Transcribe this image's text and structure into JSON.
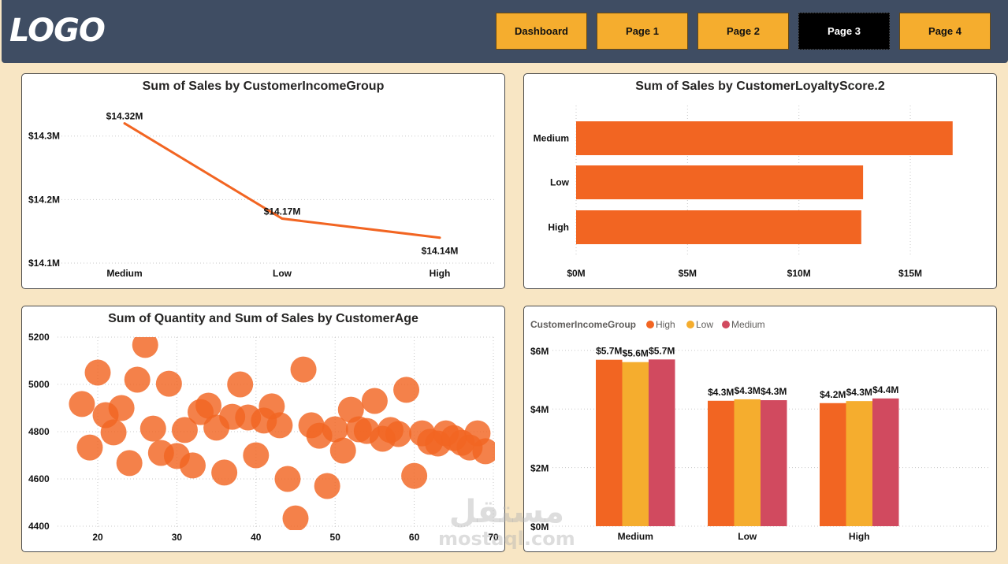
{
  "header": {
    "logo": "LOGO",
    "nav": [
      {
        "label": "Dashboard",
        "active": false
      },
      {
        "label": "Page 1",
        "active": false
      },
      {
        "label": "Page 2",
        "active": false
      },
      {
        "label": "Page 3",
        "active": true
      },
      {
        "label": "Page 4",
        "active": false
      }
    ],
    "colors": {
      "header_bg": "#3f4d63",
      "button": "#f5ad2e",
      "active_button": "#000000",
      "page_bg": "#f8e6c4"
    }
  },
  "watermark": {
    "arabic": "مستقل",
    "latin": "mostaql.com"
  },
  "chart_data": [
    {
      "id": "line",
      "type": "line",
      "title": "Sum of Sales by CustomerIncomeGroup",
      "categories": [
        "Medium",
        "Low",
        "High"
      ],
      "values": [
        14.32,
        14.17,
        14.14
      ],
      "data_labels": [
        "$14.32M",
        "$14.17M",
        "$14.14M"
      ],
      "yticks": [
        14.1,
        14.2,
        14.3
      ],
      "ytick_labels": [
        "$14.1M",
        "$14.2M",
        "$14.3M"
      ],
      "ylim": [
        14.1,
        14.34
      ],
      "unit": "$M",
      "color": "#f26522",
      "grid": true
    },
    {
      "id": "hbar",
      "type": "bar",
      "orientation": "horizontal",
      "title": "Sum of Sales by CustomerLoyaltyScore.2",
      "categories": [
        "Medium",
        "Low",
        "High"
      ],
      "values": [
        16.9,
        12.88,
        12.8
      ],
      "xticks": [
        0,
        5,
        10,
        15
      ],
      "xtick_labels": [
        "$0M",
        "$5M",
        "$10M",
        "$15M"
      ],
      "xlim": [
        0,
        18
      ],
      "unit": "$M",
      "color": "#f26522",
      "grid": true
    },
    {
      "id": "scatter",
      "type": "scatter",
      "title": "Sum of Quantity and Sum of Sales by CustomerAge",
      "xlabel": "CustomerAge",
      "ylabel": "Sum of Quantity",
      "xlim": [
        15.8,
        70
      ],
      "ylim": [
        4400,
        5200
      ],
      "xticks": [
        20,
        30,
        40,
        50,
        60,
        70
      ],
      "yticks": [
        4400,
        4600,
        4800,
        5000,
        5200
      ],
      "color": "#f26522",
      "grid": true,
      "points": [
        {
          "x": 18,
          "y": 4917
        },
        {
          "x": 19,
          "y": 4733
        },
        {
          "x": 20,
          "y": 5050
        },
        {
          "x": 21,
          "y": 4870
        },
        {
          "x": 22,
          "y": 4797
        },
        {
          "x": 23,
          "y": 4900
        },
        {
          "x": 24,
          "y": 4667
        },
        {
          "x": 25,
          "y": 5020
        },
        {
          "x": 26,
          "y": 5167
        },
        {
          "x": 27,
          "y": 4813
        },
        {
          "x": 28,
          "y": 4710
        },
        {
          "x": 29,
          "y": 5003
        },
        {
          "x": 30,
          "y": 4697
        },
        {
          "x": 31,
          "y": 4807
        },
        {
          "x": 32,
          "y": 4657
        },
        {
          "x": 33,
          "y": 4883
        },
        {
          "x": 34,
          "y": 4910
        },
        {
          "x": 35,
          "y": 4817
        },
        {
          "x": 36,
          "y": 4627
        },
        {
          "x": 37,
          "y": 4863
        },
        {
          "x": 38,
          "y": 5000
        },
        {
          "x": 39,
          "y": 4860
        },
        {
          "x": 40,
          "y": 4700
        },
        {
          "x": 41,
          "y": 4847
        },
        {
          "x": 42,
          "y": 4907
        },
        {
          "x": 43,
          "y": 4827
        },
        {
          "x": 44,
          "y": 4600
        },
        {
          "x": 45,
          "y": 4433
        },
        {
          "x": 46,
          "y": 5063
        },
        {
          "x": 47,
          "y": 4827
        },
        {
          "x": 48,
          "y": 4783
        },
        {
          "x": 49,
          "y": 4570
        },
        {
          "x": 50,
          "y": 4810
        },
        {
          "x": 51,
          "y": 4720
        },
        {
          "x": 52,
          "y": 4893
        },
        {
          "x": 53,
          "y": 4810
        },
        {
          "x": 54,
          "y": 4803
        },
        {
          "x": 55,
          "y": 4930
        },
        {
          "x": 56,
          "y": 4770
        },
        {
          "x": 57,
          "y": 4807
        },
        {
          "x": 58,
          "y": 4790
        },
        {
          "x": 59,
          "y": 4977
        },
        {
          "x": 60,
          "y": 4613
        },
        {
          "x": 61,
          "y": 4793
        },
        {
          "x": 62,
          "y": 4757
        },
        {
          "x": 63,
          "y": 4750
        },
        {
          "x": 64,
          "y": 4793
        },
        {
          "x": 65,
          "y": 4773
        },
        {
          "x": 66,
          "y": 4753
        },
        {
          "x": 67,
          "y": 4733
        },
        {
          "x": 68,
          "y": 4793
        },
        {
          "x": 69,
          "y": 4717
        }
      ]
    },
    {
      "id": "cbar",
      "type": "bar",
      "orientation": "vertical",
      "title": "",
      "legend_title": "CustomerIncomeGroup",
      "legend_position": "top-left",
      "categories": [
        "Medium",
        "Low",
        "High"
      ],
      "series": [
        {
          "name": "High",
          "color": "#f26522",
          "values": [
            5.68,
            4.28,
            4.2
          ],
          "labels": [
            "$5.7M",
            "$4.3M",
            "$4.2M"
          ]
        },
        {
          "name": "Low",
          "color": "#f5ad2e",
          "values": [
            5.6,
            4.33,
            4.27
          ],
          "labels": [
            "$5.6M",
            "$4.3M",
            "$4.3M"
          ]
        },
        {
          "name": "Medium",
          "color": "#d14a5f",
          "values": [
            5.69,
            4.3,
            4.36
          ],
          "labels": [
            "$5.7M",
            "$4.3M",
            "$4.4M"
          ]
        }
      ],
      "yticks": [
        0,
        2,
        4,
        6
      ],
      "ytick_labels": [
        "$0M",
        "$2M",
        "$4M",
        "$6M"
      ],
      "ylim": [
        0,
        6.3
      ],
      "unit": "$M",
      "grid": true
    }
  ]
}
